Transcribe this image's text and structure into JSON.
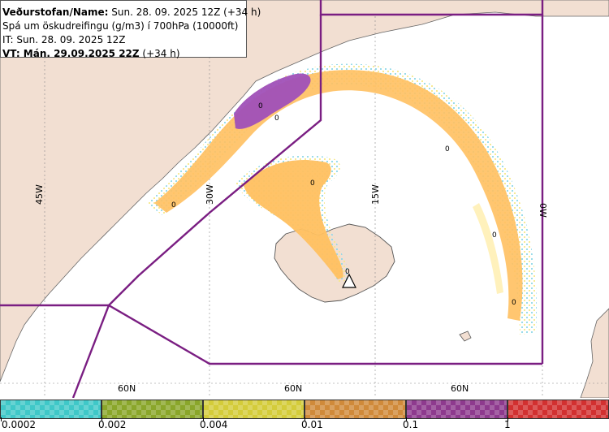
{
  "info_box": {
    "line1_label": "Veðurstofan/Name:",
    "line1_value": " Sun. 28. 09. 2025 12Z (+34 h)",
    "line2": "Spá um öskudreifingu (g/m3) í 700hPa (10000ft)",
    "line3": "IT: Sun. 28. 09. 2025 12Z",
    "line4_label": "VT: Mán. 29.09.2025 22Z",
    "line4_value": " (+34 h)"
  },
  "grid_labels": {
    "longitudes": [
      "45W",
      "30W",
      "15W",
      "0W"
    ],
    "latitudes": [
      "60N",
      "60N",
      "60N"
    ]
  },
  "contour_labels": [
    "0",
    "0",
    "0",
    "0",
    "0",
    "0",
    "0",
    "0"
  ],
  "legend": {
    "ticks": [
      "0.0002",
      "0.002",
      "0.004",
      "0.01",
      "0.1",
      "1"
    ],
    "colors": [
      "#3fc8c8",
      "#8aa62a",
      "#d4cc3a",
      "#d08a3a",
      "#8e3a8e",
      "#d23030"
    ]
  },
  "colors": {
    "land": "#f2dfd2",
    "sea": "#ffffff",
    "boundary": "#7a1e82",
    "ash_low": "#ffc060",
    "ash_high": "#a050b8"
  }
}
